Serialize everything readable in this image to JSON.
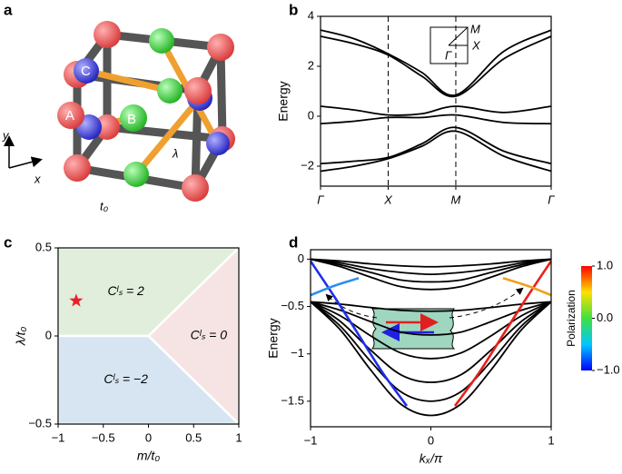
{
  "panel_labels": [
    "a",
    "b",
    "c",
    "d"
  ],
  "diagram": {
    "atom_labels": [
      "A",
      "B",
      "C"
    ],
    "hopping_labels": [
      "t₀",
      "λ"
    ],
    "axis_labels": [
      "y",
      "x"
    ]
  },
  "chart_data": [
    {
      "type": "line",
      "ylabel": "Energy",
      "x": [
        0,
        0.5,
        1,
        1.5,
        2,
        2.71,
        3.41
      ],
      "xlim": [
        0,
        3.41
      ],
      "ylim": [
        -2.8,
        4
      ],
      "xticks": [
        {
          "value": 0,
          "label": "Γ"
        },
        {
          "value": 1,
          "label": "X"
        },
        {
          "value": 2,
          "label": "M"
        },
        {
          "value": 3.41,
          "label": "Γ"
        }
      ],
      "yticks": [
        {
          "value": -2,
          "label": "−2"
        },
        0,
        2,
        4
      ],
      "vlines": [
        1,
        2
      ],
      "inset_labels": [
        "M",
        "X",
        "Γ"
      ],
      "series": [
        {
          "color": "#000000",
          "values": [
            3.45,
            3.1,
            2.5,
            1.75,
            0.85,
            2.6,
            3.45
          ]
        },
        {
          "color": "#000000",
          "values": [
            3.2,
            2.9,
            2.45,
            1.6,
            0.8,
            2.3,
            3.2
          ]
        },
        {
          "color": "#000000",
          "values": [
            0.4,
            0.25,
            0.05,
            0.1,
            0.4,
            0.15,
            0.4
          ]
        },
        {
          "color": "#000000",
          "values": [
            -0.3,
            -0.2,
            -0.05,
            -0.05,
            0.05,
            -0.25,
            -0.3
          ]
        },
        {
          "color": "#000000",
          "values": [
            -1.9,
            -1.8,
            -1.65,
            -1.1,
            -0.45,
            -1.4,
            -1.9
          ]
        },
        {
          "color": "#000000",
          "values": [
            -2.2,
            -2.0,
            -1.7,
            -1.2,
            -0.6,
            -1.6,
            -2.2
          ]
        }
      ]
    },
    {
      "type": "phase",
      "xlabel": "m/t₀",
      "ylabel": "λ/t₀",
      "xlim": [
        -1,
        1
      ],
      "ylim": [
        -0.5,
        0.5
      ],
      "xticks": [
        {
          "value": -1,
          "label": "−1"
        },
        {
          "value": -0.5,
          "label": "−0.5"
        },
        0,
        0.5,
        1
      ],
      "yticks": [
        {
          "value": -0.5,
          "label": "−0.5"
        },
        0,
        0.5
      ],
      "regions": [
        {
          "label": "Cˡₛ = 2",
          "color": "#e0eedb",
          "x": [
            -1,
            0,
            1,
            -1
          ],
          "y": [
            0,
            0,
            0.5,
            0.5
          ]
        },
        {
          "label": "Cˡₛ = 0",
          "color": "#f6e4e4",
          "x": [
            0,
            1,
            1
          ],
          "y": [
            0,
            0.5,
            -0.5
          ]
        },
        {
          "label": "Cˡₛ = −2",
          "color": "#d7e5f3",
          "x": [
            -1,
            0,
            1,
            -1
          ],
          "y": [
            0,
            0,
            -0.5,
            -0.5
          ]
        }
      ],
      "marker": {
        "x": -0.8,
        "y": 0.2,
        "color": "#e8202a"
      }
    },
    {
      "type": "line",
      "xlabel": "kₓ/π",
      "ylabel": "Energy",
      "x": [
        -1,
        -0.75,
        -0.5,
        -0.25,
        0,
        0.25,
        0.5,
        0.75,
        1
      ],
      "xlim": [
        -1,
        1
      ],
      "ylim": [
        -1.77,
        0.1
      ],
      "xticks": [
        {
          "value": -1,
          "label": "−1"
        },
        0,
        1
      ],
      "yticks": [
        {
          "value": -1.5,
          "label": "−1.5"
        },
        {
          "value": -1,
          "label": "−1"
        },
        {
          "value": -0.5,
          "label": "−0.5"
        },
        0
      ],
      "series": [
        {
          "color": "#000000",
          "values": [
            0,
            -0.02,
            -0.05,
            -0.07,
            -0.08,
            -0.07,
            -0.05,
            -0.02,
            0
          ]
        },
        {
          "color": "#000000",
          "values": [
            0,
            -0.04,
            -0.1,
            -0.14,
            -0.16,
            -0.14,
            -0.1,
            -0.04,
            0
          ]
        },
        {
          "color": "#000000",
          "values": [
            0,
            -0.06,
            -0.14,
            -0.22,
            -0.24,
            -0.22,
            -0.14,
            -0.06,
            0
          ]
        },
        {
          "color": "#000000",
          "values": [
            0,
            -0.08,
            -0.19,
            -0.29,
            -0.32,
            -0.29,
            -0.19,
            -0.08,
            0
          ]
        },
        {
          "color": "#000000",
          "values": [
            -0.45,
            -0.475,
            -0.51,
            -0.54,
            -0.55,
            -0.54,
            -0.51,
            -0.475,
            -0.45
          ]
        },
        {
          "color": "#000000",
          "values": [
            -0.45,
            -0.54,
            -0.66,
            -0.77,
            -0.8,
            -0.77,
            -0.66,
            -0.54,
            -0.45
          ]
        },
        {
          "color": "#000000",
          "values": [
            -0.45,
            -0.6,
            -0.81,
            -0.99,
            -1.05,
            -0.99,
            -0.81,
            -0.6,
            -0.45
          ]
        },
        {
          "color": "#000000",
          "values": [
            -0.45,
            -0.66,
            -0.96,
            -1.22,
            -1.3,
            -1.22,
            -0.96,
            -0.66,
            -0.45
          ]
        },
        {
          "color": "#000000",
          "values": [
            -0.45,
            -0.71,
            -1.08,
            -1.4,
            -1.5,
            -1.4,
            -1.08,
            -0.71,
            -0.45
          ]
        },
        {
          "color": "#000000",
          "values": [
            -0.45,
            -0.75,
            -1.17,
            -1.53,
            -1.65,
            -1.53,
            -1.17,
            -0.75,
            -0.45
          ]
        },
        {
          "color": "#1f2fe8",
          "x": [
            -1,
            -0.8,
            -0.6,
            -0.4,
            -0.2
          ],
          "values": [
            -0.02,
            -0.4,
            -0.8,
            -1.2,
            -1.55
          ]
        },
        {
          "color": "#2e8ff0",
          "x": [
            -1,
            -0.8,
            -0.6
          ],
          "values": [
            -0.38,
            -0.28,
            -0.2
          ]
        },
        {
          "color": "#e8201a",
          "x": [
            0.2,
            0.4,
            0.6,
            0.8,
            1
          ],
          "values": [
            -1.55,
            -1.2,
            -0.8,
            -0.4,
            -0.02
          ]
        },
        {
          "color": "#f0a020",
          "x": [
            0.6,
            0.8,
            1
          ],
          "values": [
            -0.2,
            -0.28,
            -0.38
          ]
        }
      ],
      "colorbar": {
        "label": "Polarization",
        "lim": [
          -1,
          1
        ],
        "ticks": [
          {
            "value": 1,
            "label": "1.0"
          },
          {
            "value": 0,
            "label": "0.0"
          },
          {
            "value": -1,
            "label": "−1.0"
          }
        ],
        "colors": [
          "#0000ff",
          "#00c8ff",
          "#40e040",
          "#ffe000",
          "#ff0000"
        ]
      }
    }
  ]
}
